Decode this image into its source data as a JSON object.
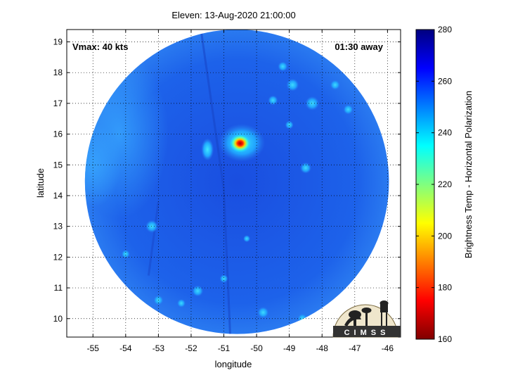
{
  "title": "Eleven: 13-Aug-2020 21:00:00",
  "chart_data": {
    "type": "heatmap",
    "title": "Eleven: 13-Aug-2020 21:00:00",
    "xlabel": "longitude",
    "ylabel": "latitude",
    "xlim": [
      -55.8,
      -45.6
    ],
    "ylim": [
      9.4,
      19.4
    ],
    "xticks": [
      -55,
      -54,
      -53,
      -52,
      -51,
      -50,
      -49,
      -48,
      -47,
      -46
    ],
    "yticks": [
      10,
      11,
      12,
      13,
      14,
      15,
      16,
      17,
      18,
      19
    ],
    "grid": true,
    "annotation_left": "Vmax: 40 kts",
    "annotation_right": "01:30 away",
    "colorbar": {
      "label": "Brightness Temp - Horizontal Polarization",
      "min": 160,
      "max": 280,
      "ticks": [
        160,
        180,
        200,
        220,
        240,
        260,
        280
      ],
      "colormap": "jet"
    },
    "swath": {
      "center_lon": -50.6,
      "center_lat": 14.45,
      "radius_deg_lat": 4.95
    },
    "features": [
      {
        "lon": -50.5,
        "lat": 15.7,
        "value": 175,
        "note": "cold core"
      },
      {
        "lon": -51.5,
        "lat": 15.45,
        "value": 230
      },
      {
        "lon": -48.3,
        "lat": 17.0,
        "value": 238
      },
      {
        "lon": -53.2,
        "lat": 13.0,
        "value": 240
      },
      {
        "lon": -48.5,
        "lat": 14.9,
        "value": 242
      }
    ],
    "logo": "CIMSS"
  }
}
